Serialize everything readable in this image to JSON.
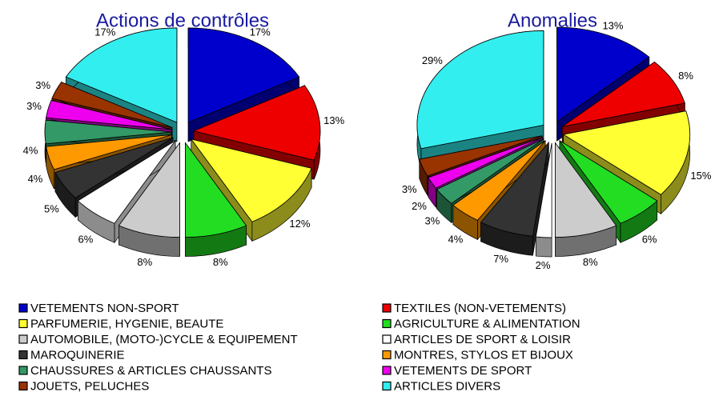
{
  "chart_data": {
    "type": "pie",
    "categories": [
      "VETEMENTS NON-SPORT",
      "TEXTILES (NON-VETEMENTS)",
      "PARFUMERIE, HYGENIE, BEAUTE",
      "AGRICULTURE & ALIMENTATION",
      "AUTOMOBILE, (MOTO-)CYCLE & EQUIPEMENT",
      "ARTICLES DE SPORT & LOISIR",
      "MAROQUINERIE",
      "MONTRES, STYLOS ET BIJOUX",
      "CHAUSSURES & ARTICLES CHAUSSANTS",
      "VETEMENTS DE SPORT",
      "JOUETS, PELUCHES",
      "ARTICLES DIVERS"
    ],
    "colors": [
      "#0000cc",
      "#ee0000",
      "#ffff33",
      "#22dd22",
      "#cccccc",
      "#ffffff",
      "#333333",
      "#ff9900",
      "#339966",
      "#ee00ee",
      "#993300",
      "#33eeee"
    ],
    "series": [
      {
        "name": "Actions de contrôles",
        "values": [
          17,
          13,
          12,
          8,
          8,
          6,
          5,
          4,
          4,
          3,
          3,
          17
        ],
        "value_labels": [
          "17%",
          "13%",
          "12%",
          "8%",
          "8%",
          "6%",
          "5%",
          "4%",
          "4%",
          "3%",
          "3%",
          "17%"
        ]
      },
      {
        "name": "Anomalies",
        "values": [
          13,
          8,
          15,
          6,
          8,
          2,
          7,
          4,
          3,
          2,
          3,
          29
        ],
        "value_labels": [
          "13%",
          "8%",
          "15%",
          "6%",
          "8%",
          "2%",
          "7%",
          "4%",
          "3%",
          "2%",
          "3%",
          "29%"
        ]
      }
    ]
  }
}
